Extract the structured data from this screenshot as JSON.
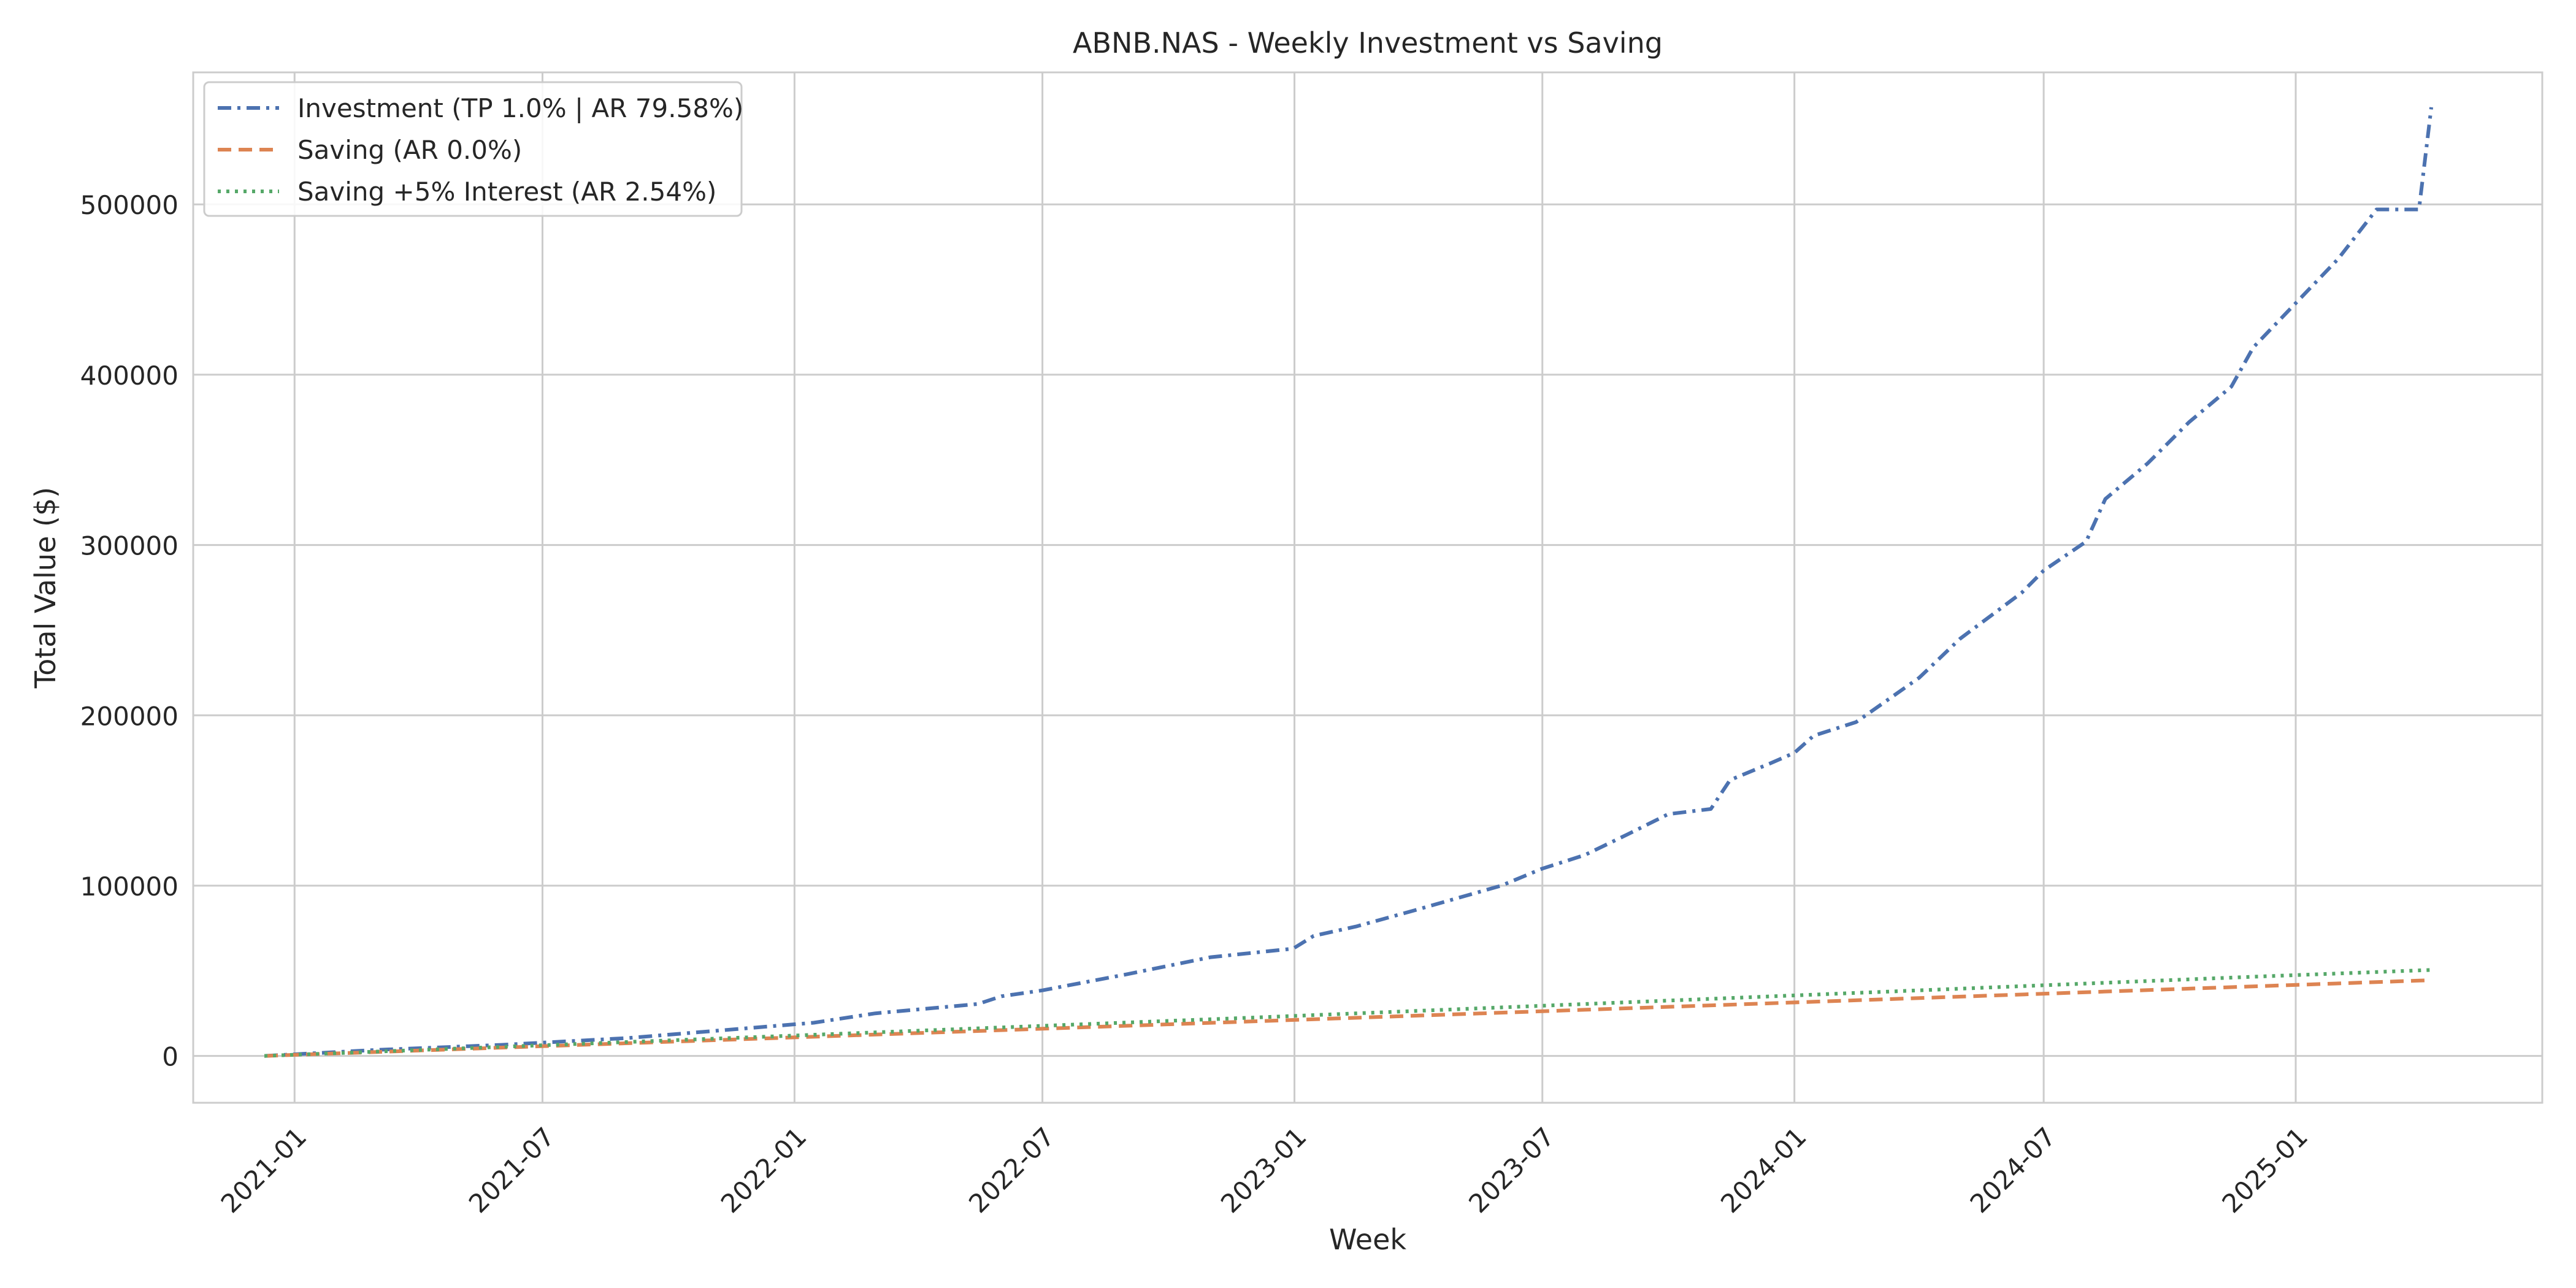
{
  "chart_data": {
    "type": "line",
    "title": "ABNB.NAS - Weekly Investment vs Saving",
    "xlabel": "Week",
    "ylabel": "Total Value ($)",
    "xlim": [
      "2020-10-19",
      "2025-06-30"
    ],
    "ylim": [
      -27500,
      577500
    ],
    "x_ticks": [
      "2021-01",
      "2021-07",
      "2022-01",
      "2022-07",
      "2023-01",
      "2023-07",
      "2024-01",
      "2024-07",
      "2025-01"
    ],
    "y_ticks": [
      0,
      100000,
      200000,
      300000,
      400000,
      500000
    ],
    "y_tick_labels": [
      "0",
      "100000",
      "200000",
      "300000",
      "400000",
      "500000"
    ],
    "grid": true,
    "legend_position": "upper-left",
    "series": [
      {
        "name": "Investment (TP 1.0% | AR 79.58%)",
        "color": "#4c72b0",
        "line_style": "dashdot",
        "points": [
          [
            "2020-12-10",
            0
          ],
          [
            "2021-03-01",
            3500
          ],
          [
            "2021-06-01",
            6500
          ],
          [
            "2021-09-01",
            10500
          ],
          [
            "2021-12-01",
            16500
          ],
          [
            "2022-01-15",
            19500
          ],
          [
            "2022-03-01",
            25000
          ],
          [
            "2022-05-15",
            30500
          ],
          [
            "2022-06-01",
            35000
          ],
          [
            "2022-07-01",
            38500
          ],
          [
            "2022-09-01",
            48000
          ],
          [
            "2022-11-01",
            58000
          ],
          [
            "2022-12-31",
            63000
          ],
          [
            "2023-01-15",
            70500
          ],
          [
            "2023-02-15",
            76000
          ],
          [
            "2023-04-01",
            86000
          ],
          [
            "2023-06-01",
            100000
          ],
          [
            "2023-07-01",
            110000
          ],
          [
            "2023-08-01",
            118000
          ],
          [
            "2023-09-01",
            130000
          ],
          [
            "2023-10-01",
            142000
          ],
          [
            "2023-11-01",
            145000
          ],
          [
            "2023-11-15",
            162000
          ],
          [
            "2023-12-15",
            172000
          ],
          [
            "2024-01-01",
            178000
          ],
          [
            "2024-01-15",
            188000
          ],
          [
            "2024-02-15",
            196000
          ],
          [
            "2024-04-01",
            222000
          ],
          [
            "2024-05-01",
            245000
          ],
          [
            "2024-06-15",
            272000
          ],
          [
            "2024-07-01",
            285000
          ],
          [
            "2024-08-01",
            302000
          ],
          [
            "2024-08-15",
            327000
          ],
          [
            "2024-09-15",
            348000
          ],
          [
            "2024-10-15",
            372000
          ],
          [
            "2024-11-15",
            393000
          ],
          [
            "2024-12-01",
            416000
          ],
          [
            "2025-01-01",
            442000
          ],
          [
            "2025-02-01",
            468000
          ],
          [
            "2025-03-01",
            497000
          ],
          [
            "2025-04-01",
            497000
          ],
          [
            "2025-04-10",
            557000
          ]
        ]
      },
      {
        "name": "Saving (AR 0.0%)",
        "color": "#dd8452",
        "line_style": "dashed",
        "points": [
          [
            "2020-12-10",
            0
          ],
          [
            "2025-04-10",
            44500
          ]
        ]
      },
      {
        "name": "Saving +5% Interest (AR 2.54%)",
        "color": "#55a868",
        "line_style": "dotted",
        "points": [
          [
            "2020-12-10",
            0
          ],
          [
            "2021-12-01",
            11000
          ],
          [
            "2022-12-01",
            22500
          ],
          [
            "2023-12-01",
            34500
          ],
          [
            "2024-12-01",
            46500
          ],
          [
            "2025-04-10",
            50500
          ]
        ]
      }
    ]
  }
}
